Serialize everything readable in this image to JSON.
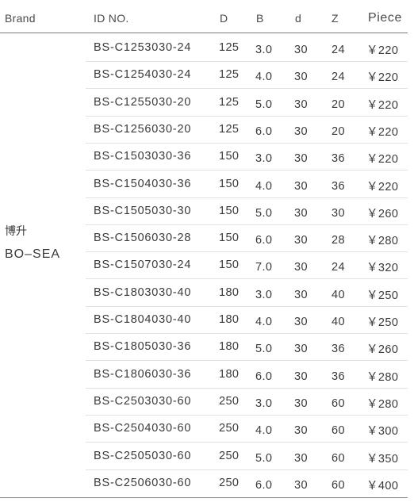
{
  "table": {
    "headers": {
      "brand": "Brand",
      "id": "ID NO.",
      "D": "D",
      "B": "B",
      "d": "d",
      "Z": "Z",
      "piece": "Piece"
    },
    "brand_cn": "博升",
    "brand_en": "BO–SEA",
    "rows": [
      {
        "id": "BS-C1253030-24",
        "D": "125",
        "B": "3.0",
        "d": "30",
        "Z": "24",
        "price": "￥220"
      },
      {
        "id": "BS-C1254030-24",
        "D": "125",
        "B": "4.0",
        "d": "30",
        "Z": "24",
        "price": "￥220"
      },
      {
        "id": "BS-C1255030-20",
        "D": "125",
        "B": "5.0",
        "d": "30",
        "Z": "20",
        "price": "￥220"
      },
      {
        "id": "BS-C1256030-20",
        "D": "125",
        "B": "6.0",
        "d": "30",
        "Z": "20",
        "price": "￥220"
      },
      {
        "id": "BS-C1503030-36",
        "D": "150",
        "B": "3.0",
        "d": "30",
        "Z": "36",
        "price": "￥220"
      },
      {
        "id": "BS-C1504030-36",
        "D": "150",
        "B": "4.0",
        "d": "30",
        "Z": "36",
        "price": "￥220"
      },
      {
        "id": "BS-C1505030-30",
        "D": "150",
        "B": "5.0",
        "d": "30",
        "Z": "30",
        "price": "￥260"
      },
      {
        "id": "BS-C1506030-28",
        "D": "150",
        "B": "6.0",
        "d": "30",
        "Z": "28",
        "price": "￥280"
      },
      {
        "id": "BS-C1507030-24",
        "D": "150",
        "B": "7.0",
        "d": "30",
        "Z": "24",
        "price": "￥320"
      },
      {
        "id": "BS-C1803030-40",
        "D": "180",
        "B": "3.0",
        "d": "30",
        "Z": "40",
        "price": "￥250"
      },
      {
        "id": "BS-C1804030-40",
        "D": "180",
        "B": "4.0",
        "d": "30",
        "Z": "40",
        "price": "￥250"
      },
      {
        "id": "BS-C1805030-36",
        "D": "180",
        "B": "5.0",
        "d": "30",
        "Z": "36",
        "price": "￥260"
      },
      {
        "id": "BS-C1806030-36",
        "D": "180",
        "B": "6.0",
        "d": "30",
        "Z": "36",
        "price": "￥280"
      },
      {
        "id": "BS-C2503030-60",
        "D": "250",
        "B": "3.0",
        "d": "30",
        "Z": "60",
        "price": "￥280"
      },
      {
        "id": "BS-C2504030-60",
        "D": "250",
        "B": "4.0",
        "d": "30",
        "Z": "60",
        "price": "￥300"
      },
      {
        "id": "BS-C2505030-60",
        "D": "250",
        "B": "5.0",
        "d": "30",
        "Z": "60",
        "price": "￥350"
      },
      {
        "id": "BS-C2506030-60",
        "D": "250",
        "B": "6.0",
        "d": "30",
        "Z": "60",
        "price": "￥400"
      }
    ]
  }
}
